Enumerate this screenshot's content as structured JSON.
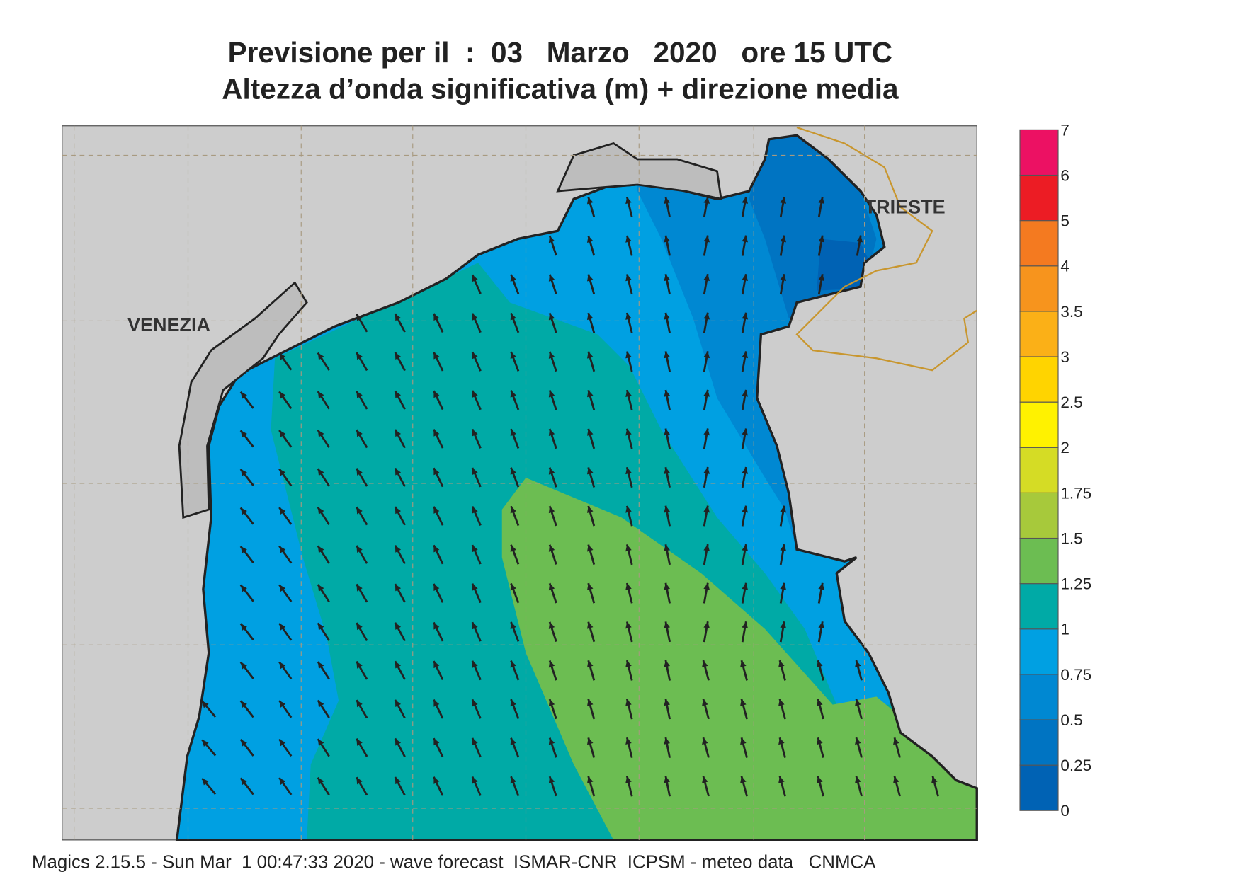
{
  "header": {
    "title_line1": "Previsione per il  :  03   Marzo   2020   ore 15 UTC",
    "title_line2": "Altezza d’onda significativa (m) + direzione media"
  },
  "places": [
    {
      "label": "VENEZIA"
    },
    {
      "label": "TRIESTE"
    }
  ],
  "colorbar": {
    "levels": [
      0,
      0.25,
      0.5,
      0.75,
      1,
      1.25,
      1.5,
      1.75,
      2,
      2.5,
      3,
      3.5,
      4,
      5,
      6,
      7
    ],
    "colors": [
      "#0062b4",
      "#0074c2",
      "#0088d2",
      "#00a0e2",
      "#00aaa6",
      "#6cbd52",
      "#a7c93b",
      "#d5dc25",
      "#fff200",
      "#ffd400",
      "#fbb017",
      "#f7941d",
      "#f47a20",
      "#ec1c24",
      "#ec1163"
    ]
  },
  "footer": "Magics 2.15.5 - Sun Mar  1 00:47:33 2020 - wave forecast  ISMAR-CNR  ICPSM - meteo data   CNMCA"
}
